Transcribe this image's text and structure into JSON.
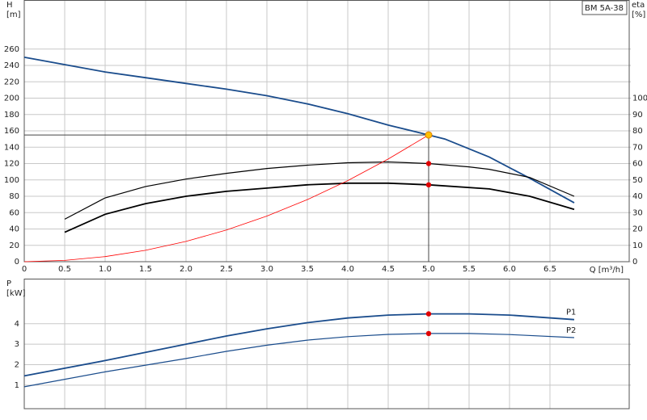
{
  "chart_data": [
    {
      "type": "line",
      "y_label": [
        "H",
        "[m]"
      ],
      "y2_label": [
        "eta",
        "[%]"
      ],
      "x_label": "Q [m³/h]",
      "annotation": "BM 5A-38",
      "xlim": [
        0,
        7.5
      ],
      "ylim": [
        0,
        320
      ],
      "y2lim": [
        0,
        160
      ],
      "xticks": [
        0,
        0.5,
        {
          "value": 1,
          "label": "1.0"
        },
        1.5,
        {
          "value": 2,
          "label": "2.0"
        },
        2.5,
        {
          "value": 3,
          "label": "3.0"
        },
        3.5,
        {
          "value": 4,
          "label": "4.0"
        },
        4.5,
        {
          "value": 5,
          "label": "5.0"
        },
        5.5,
        {
          "value": 6,
          "label": "6.0"
        },
        6.5
      ],
      "yticks": [
        0,
        20,
        40,
        60,
        80,
        100,
        120,
        140,
        160,
        180,
        200,
        220,
        240,
        260
      ],
      "y2ticks": [
        0,
        10,
        20,
        30,
        40,
        50,
        60,
        70,
        80,
        90,
        100
      ],
      "grid": true,
      "series": [
        {
          "color": "#1a4c8c",
          "width": 1.8,
          "x": [
            0,
            0.5,
            1,
            1.5,
            2,
            2.5,
            3,
            3.5,
            4,
            4.5,
            5,
            5.2,
            5.75,
            6.25,
            6.8
          ],
          "values": [
            250,
            241,
            232,
            225,
            218,
            211,
            203,
            193,
            181,
            167,
            155,
            150,
            128,
            102,
            72
          ]
        },
        {
          "color": "#000000",
          "width": 1.2,
          "axis": "y2",
          "x": [
            0.5,
            1,
            1.5,
            2,
            2.5,
            3,
            3.5,
            4,
            4.5,
            5,
            5.5,
            5.75,
            6.25,
            6.8
          ],
          "values": [
            26,
            39,
            46,
            50.5,
            54,
            57,
            59,
            60.5,
            61,
            60,
            58,
            56.5,
            51.5,
            40
          ]
        },
        {
          "color": "#000000",
          "width": 1.8,
          "axis": "y2",
          "x": [
            0.5,
            1,
            1.5,
            2,
            2.5,
            3,
            3.5,
            4,
            4.5,
            5,
            5.75,
            6.25,
            6.8
          ],
          "values": [
            18,
            29,
            35.5,
            40,
            43,
            45,
            47,
            48,
            48,
            47,
            44.5,
            40,
            32
          ]
        },
        {
          "color": "#ff0000",
          "width": 0.8,
          "x": [
            0,
            0.5,
            1,
            1.5,
            2,
            2.5,
            3,
            3.5,
            4,
            4.5,
            5
          ],
          "values": [
            0,
            1.55,
            6.2,
            13.95,
            24.8,
            38.75,
            55.8,
            75.95,
            99.2,
            125.55,
            155
          ]
        }
      ],
      "points": [
        {
          "x": 5,
          "y": 155,
          "color": "#ffc000",
          "crosshair": true
        },
        {
          "x": 5,
          "y": 60,
          "axis": "y2",
          "color": "#e00000"
        },
        {
          "x": 5,
          "y": 47,
          "axis": "y2",
          "color": "#e00000"
        }
      ]
    },
    {
      "type": "line",
      "y_label": [
        "P",
        "[kW]"
      ],
      "xlim": [
        0,
        7.5
      ],
      "ylim": [
        -0.15,
        6.2
      ],
      "yticks": [
        1,
        2,
        3,
        4
      ],
      "grid": true,
      "series": [
        {
          "name": "P1",
          "color": "#1a4c8c",
          "width": 1.8,
          "x": [
            0,
            1,
            2,
            2.5,
            3,
            3.5,
            4,
            4.5,
            5,
            5.5,
            6,
            6.8
          ],
          "values": [
            1.45,
            2.2,
            3.0,
            3.4,
            3.75,
            4.05,
            4.28,
            4.42,
            4.48,
            4.48,
            4.42,
            4.2
          ]
        },
        {
          "name": "P2",
          "color": "#1a4c8c",
          "width": 1.2,
          "x": [
            0,
            1,
            2,
            2.5,
            3,
            3.5,
            4,
            4.5,
            5,
            5.5,
            6,
            6.8
          ],
          "values": [
            0.92,
            1.65,
            2.3,
            2.65,
            2.95,
            3.2,
            3.37,
            3.48,
            3.52,
            3.52,
            3.47,
            3.32
          ]
        }
      ],
      "points": [
        {
          "x": 5,
          "y": 4.48,
          "color": "#e00000"
        },
        {
          "x": 5,
          "y": 3.52,
          "color": "#e00000"
        }
      ]
    }
  ]
}
